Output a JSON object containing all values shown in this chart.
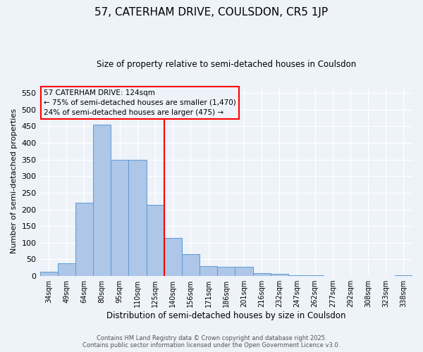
{
  "title_line1": "57, CATERHAM DRIVE, COULSDON, CR5 1JP",
  "title_line2": "Size of property relative to semi-detached houses in Coulsdon",
  "xlabel": "Distribution of semi-detached houses by size in Coulsdon",
  "ylabel": "Number of semi-detached properties",
  "bin_labels": [
    "34sqm",
    "49sqm",
    "64sqm",
    "80sqm",
    "95sqm",
    "110sqm",
    "125sqm",
    "140sqm",
    "156sqm",
    "171sqm",
    "186sqm",
    "201sqm",
    "216sqm",
    "232sqm",
    "247sqm",
    "262sqm",
    "277sqm",
    "292sqm",
    "308sqm",
    "323sqm",
    "338sqm"
  ],
  "bar_heights": [
    12,
    38,
    220,
    455,
    350,
    350,
    215,
    115,
    65,
    30,
    27,
    28,
    8,
    7,
    3,
    2,
    1,
    1,
    1,
    0,
    3
  ],
  "bar_color": "#aec6e8",
  "bar_edge_color": "#5b9bd5",
  "marker_bin_index": 6,
  "annotation_title": "57 CATERHAM DRIVE: 124sqm",
  "annotation_line1": "← 75% of semi-detached houses are smaller (1,470)",
  "annotation_line2": "24% of semi-detached houses are larger (475) →",
  "vline_color": "red",
  "annotation_box_edge_color": "red",
  "ylim": [
    0,
    570
  ],
  "yticks": [
    0,
    50,
    100,
    150,
    200,
    250,
    300,
    350,
    400,
    450,
    500,
    550
  ],
  "footer_line1": "Contains HM Land Registry data © Crown copyright and database right 2025.",
  "footer_line2": "Contains public sector information licensed under the Open Government Licence v3.0.",
  "bg_color": "#eef2f9"
}
